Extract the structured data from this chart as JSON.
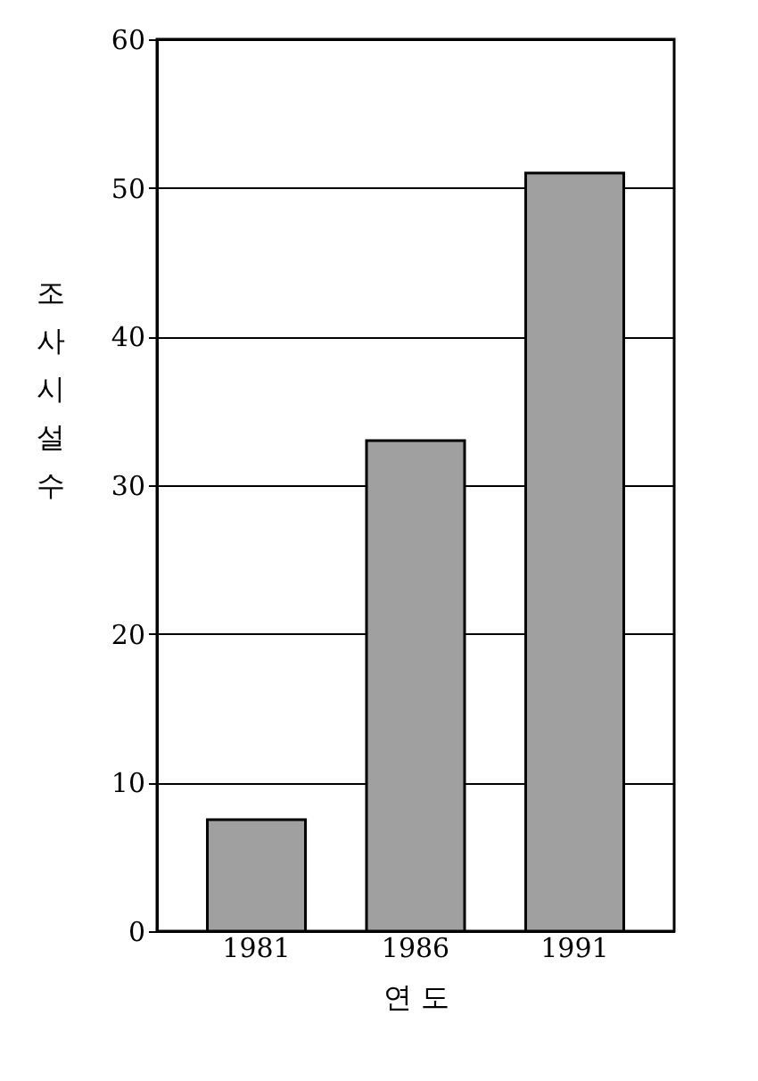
{
  "chart_data": {
    "type": "bar",
    "categories": [
      "1981",
      "1986",
      "1991"
    ],
    "values": [
      7.5,
      33,
      51
    ],
    "color": "#a0a0a0",
    "ylim": [
      0,
      60
    ],
    "yticks": [
      0,
      10,
      20,
      30,
      40,
      50,
      60
    ],
    "grid": "y",
    "xlabel": "연 도",
    "ylabel": "조사시설수"
  }
}
